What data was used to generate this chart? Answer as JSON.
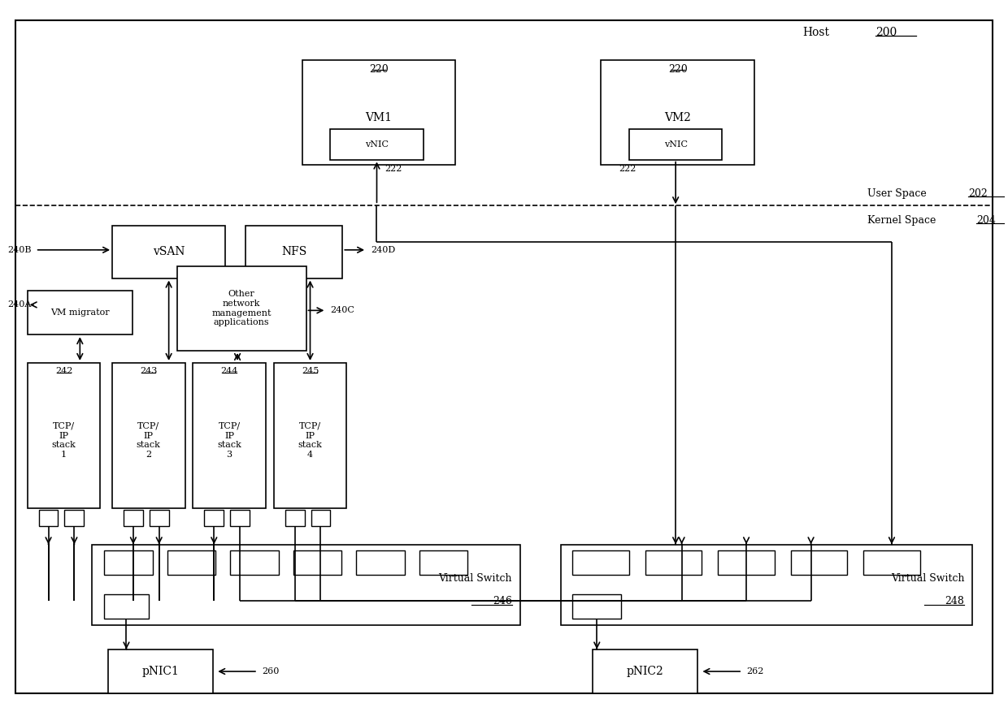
{
  "fig_width": 12.4,
  "fig_height": 8.77,
  "vm1_label": "VM1",
  "vm1_ref": "220",
  "vm2_label": "VM2",
  "vm2_ref": "220",
  "vnic1_label": "vNIC",
  "vnic2_label": "vNIC",
  "vsan_label": "vSAN",
  "nfs_label": "NFS",
  "vm_migrator_label": "VM migrator",
  "other_net_label": "Other\nnetwork\nmanagement\napplications",
  "tcp_stacks": [
    "TCP/\nIP\nstack\n1",
    "TCP/\nIP\nstack\n2",
    "TCP/\nIP\nstack\n3",
    "TCP/\nIP\nstack\n4"
  ],
  "tcp_refs": [
    "242",
    "243",
    "244",
    "245"
  ],
  "vswitch1_label": "Virtual Switch",
  "vswitch1_ref": "246",
  "vswitch2_label": "Virtual Switch",
  "vswitch2_ref": "248",
  "pnic1_label": "pNIC1",
  "pnic1_ref": "260",
  "pnic2_label": "pNIC2",
  "pnic2_ref": "262",
  "ref_240a": "240A",
  "ref_240b": "240B",
  "ref_240c": "240C",
  "ref_240d": "240D",
  "ref_222a": "222",
  "ref_222b": "222",
  "host_label": "Host",
  "host_ref": "200",
  "user_space_label": "User Space",
  "user_space_ref": "202",
  "kernel_space_label": "Kernel Space",
  "kernel_space_ref": "204"
}
